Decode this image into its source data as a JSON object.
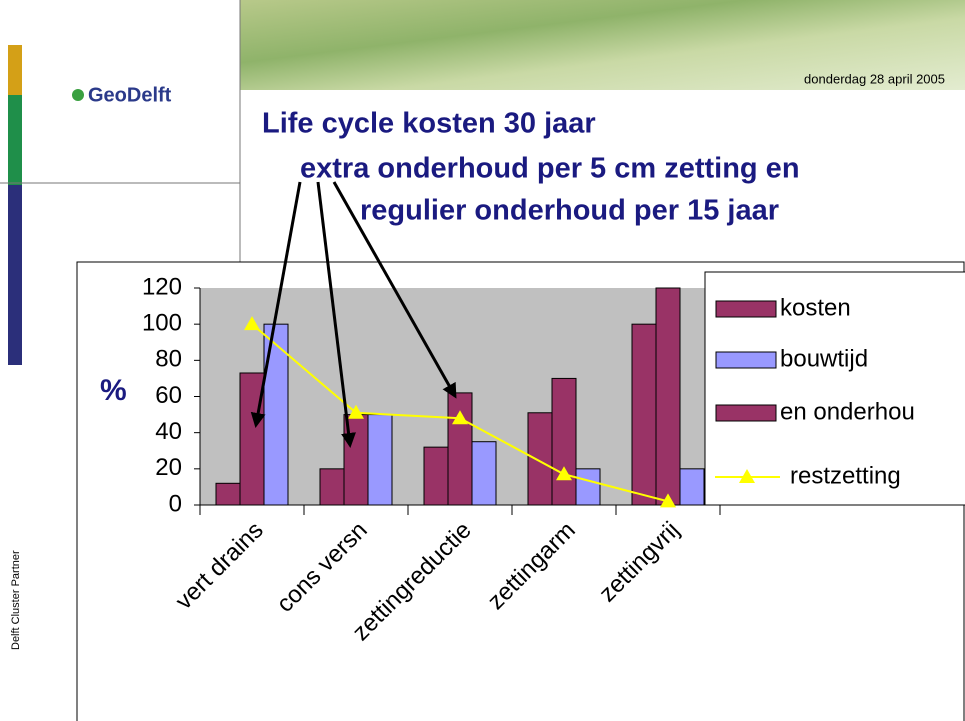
{
  "header": {
    "logo": "GeoDelft",
    "date": "donderdag 28 april 2005",
    "side_label": "Delft Cluster Partner",
    "title_lines": [
      "Life cycle kosten 30 jaar",
      "extra onderhoud per 5 cm zetting en",
      "regulier onderhoud per 15 jaar"
    ]
  },
  "chart_data": {
    "type": "bar",
    "y_label": "%",
    "categories": [
      "vert drains",
      "cons versn",
      "zettingreductie",
      "zettingarm",
      "zettingvrij"
    ],
    "series": [
      {
        "name": "kosten",
        "color": "#993366",
        "values": [
          12,
          20,
          32,
          51,
          100
        ]
      },
      {
        "name": "bouwtijd",
        "color": "#9999ff",
        "values": [
          100,
          50,
          35,
          20,
          20
        ]
      },
      {
        "name": "en onderhou",
        "color": "#993366",
        "values": [
          73,
          50,
          62,
          70,
          120
        ]
      },
      {
        "name": "restzetting",
        "type": "line",
        "color": "#ffff00",
        "values": [
          100,
          51,
          48,
          17,
          2
        ]
      }
    ],
    "ylim": [
      0,
      120
    ],
    "yticks": [
      0,
      20,
      40,
      60,
      80,
      100,
      120
    ],
    "plot_background": "#c0c0c0",
    "legend": "right"
  }
}
